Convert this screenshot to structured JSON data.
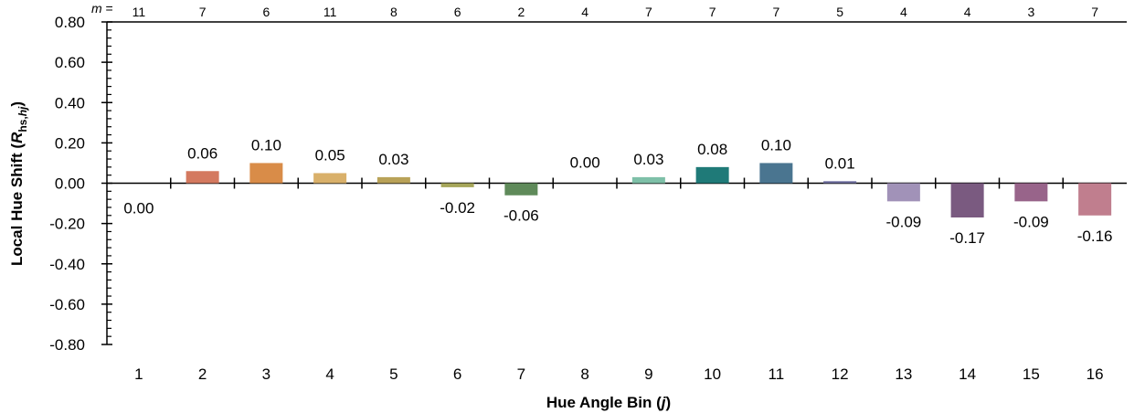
{
  "chart_data": {
    "type": "bar",
    "title": "",
    "xlabel": "Hue Angle Bin (j)",
    "xlabel_parts": [
      "Hue Angle Bin (",
      "j",
      ")"
    ],
    "ylabel": "Local Hue Shift (Rhs,hj)",
    "ylabel_parts": {
      "pre": "Local Hue Shift (",
      "var": "R",
      "sub": "hs,",
      "sub_var": "hj",
      "post": ")"
    },
    "categories": [
      "1",
      "2",
      "3",
      "4",
      "5",
      "6",
      "7",
      "8",
      "9",
      "10",
      "11",
      "12",
      "13",
      "14",
      "15",
      "16"
    ],
    "values": [
      0.0,
      0.06,
      0.1,
      0.05,
      0.03,
      -0.02,
      -0.06,
      0.0,
      0.03,
      0.08,
      0.1,
      0.01,
      -0.09,
      -0.17,
      -0.09,
      -0.16
    ],
    "data_labels": [
      "0.00",
      "0.06",
      "0.10",
      "0.05",
      "0.03",
      "-0.02",
      "-0.06",
      "0.00",
      "0.03",
      "0.08",
      "0.10",
      "0.01",
      "-0.09",
      "-0.17",
      "-0.09",
      "-0.16"
    ],
    "colors": [
      "#b8555a",
      "#d4795f",
      "#d98c48",
      "#d9b06a",
      "#b9a258",
      "#a6a65a",
      "#5f8a5a",
      "#4a9a7a",
      "#7ec0a8",
      "#1f7a78",
      "#4a7590",
      "#6f6fa0",
      "#a192b8",
      "#7a5a80",
      "#98648a",
      "#c07e8e"
    ],
    "ylim": [
      -0.8,
      0.8
    ],
    "yticks": [
      "0.80",
      "0.60",
      "0.40",
      "0.20",
      "0.00",
      "-0.20",
      "-0.40",
      "-0.60",
      "-0.80"
    ],
    "m_prefix": "m",
    "m_suffix": " =",
    "m_counts": [
      "11",
      "7",
      "6",
      "11",
      "8",
      "6",
      "2",
      "4",
      "7",
      "7",
      "7",
      "5",
      "4",
      "4",
      "3",
      "7"
    ],
    "grid": false,
    "legend": "none"
  }
}
